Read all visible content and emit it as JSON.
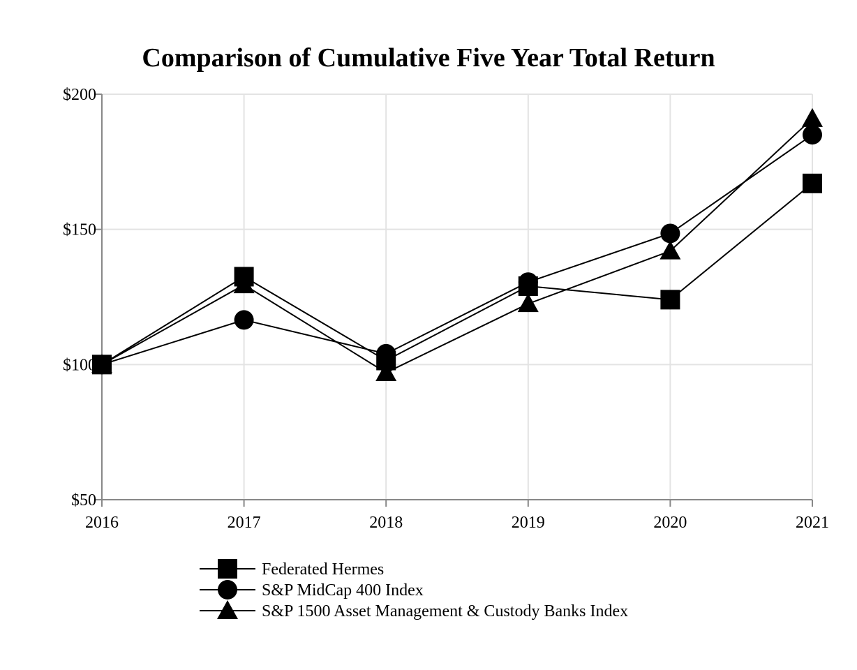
{
  "chart_data": {
    "type": "line",
    "title": "Comparison of Cumulative Five Year Total Return",
    "xlabel": "",
    "ylabel": "",
    "x": [
      "2016",
      "2017",
      "2018",
      "2019",
      "2020",
      "2021"
    ],
    "ylim": [
      50,
      200
    ],
    "y_ticks": [
      50,
      100,
      150,
      200
    ],
    "y_tick_labels": [
      "$50",
      "$100",
      "$150",
      "$200"
    ],
    "grid": true,
    "legend_position": "bottom",
    "series": [
      {
        "name": "Federated Hermes",
        "marker": "square",
        "values": [
          100,
          132.5,
          101.5,
          129,
          124,
          167
        ]
      },
      {
        "name": "S&P MidCap 400 Index",
        "marker": "circle",
        "values": [
          100,
          116.5,
          104,
          130.5,
          148.5,
          185
        ]
      },
      {
        "name": "S&P 1500 Asset Management & Custody Banks Index",
        "marker": "triangle",
        "values": [
          100,
          129.5,
          97,
          122.5,
          142,
          191
        ]
      }
    ],
    "colors": {
      "line": "#000000",
      "marker": "#000000",
      "grid": "#e3e3e3",
      "axis": "#888888"
    }
  }
}
